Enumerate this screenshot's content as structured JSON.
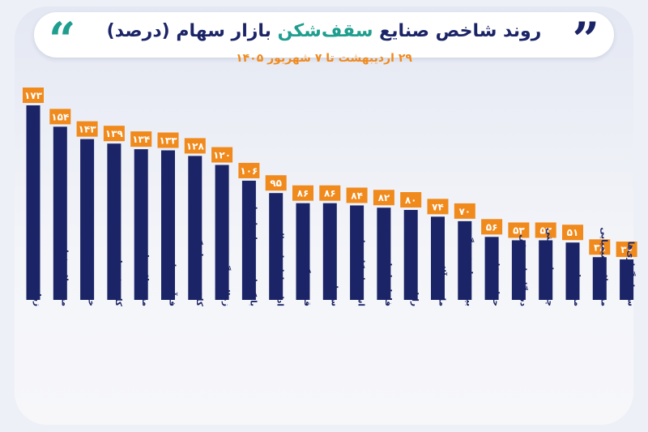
{
  "header": {
    "title_part1": "روند شاخص صنایع ",
    "title_highlight": "سقف‌شکن",
    "title_part2": " بازار سهام (درصد)",
    "subtitle": "۲۹ اردیبهشت تا ۷ شهریور ۱۴۰۵",
    "quote_left": "“",
    "quote_right": "”"
  },
  "colors": {
    "bar": "#1b2466",
    "label_bg": "#f08a1c",
    "label_text": "#ffffff",
    "accent": "#1f9e8f"
  },
  "chart_data": {
    "type": "bar",
    "title": "روند شاخص صنایع سقف‌شکن بازار سهام (درصد)",
    "subtitle": "۲۹ اردیبهشت تا ۷ شهریور ۱۴۰۵",
    "categories": [
      "زراعت",
      "محصولات غذایی",
      "خرده فروشی",
      "کانی غیرفلزی",
      "محصولات فلزی",
      "فرآورده‌های نفتی",
      "کاشی و سرامیک",
      "زغال سنگ",
      "بانک‌ها و موسسات اعتباری",
      "اداره بازارهای مالی",
      "قند و شکر",
      "سیمان",
      "استخراج کانه فلزی",
      "فلزات اساسی",
      "رایانه",
      "ماشین آلات",
      "بیمه و بازنشستگی",
      "حمل و نقل",
      "دستگاه‌های برقی",
      "چندرشته‌ای صنعتی",
      "منسوجات",
      "محصولات شیمیایی",
      "سرمایه‌گذاری‌ها"
    ],
    "values": [
      173,
      154,
      143,
      139,
      134,
      133,
      128,
      120,
      106,
      95,
      86,
      86,
      84,
      82,
      80,
      74,
      70,
      56,
      53,
      53,
      51,
      38,
      36
    ],
    "value_labels": [
      "۱۷۳",
      "۱۵۴",
      "۱۴۳",
      "۱۳۹",
      "۱۳۴",
      "۱۳۳",
      "۱۲۸",
      "۱۲۰",
      "۱۰۶",
      "۹۵",
      "۸۶",
      "۸۶",
      "۸۴",
      "۸۲",
      "۸۰",
      "۷۴",
      "۷۰",
      "۵۶",
      "۵۳",
      "۵۳",
      "۵۱",
      "۳۸",
      "۳۶"
    ],
    "ylim": [
      0,
      175
    ],
    "grid": false,
    "legend": "none"
  }
}
